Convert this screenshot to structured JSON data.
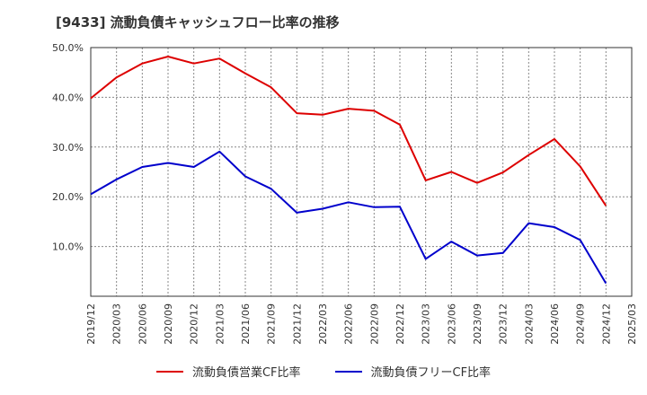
{
  "title": "[9433]  流動負債キャッシュフロー比率の推移",
  "colors": {
    "operating": "#dd0000",
    "free": "#0000cc",
    "grid": "#888888",
    "axis": "#333333"
  },
  "chart_data": {
    "type": "line",
    "title": "[9433]  流動負債キャッシュフロー比率の推移",
    "xlabel": "",
    "ylabel": "",
    "ylim": [
      0,
      50
    ],
    "yticks": [
      "10.0%",
      "20.0%",
      "30.0%",
      "40.0%",
      "50.0%"
    ],
    "ytick_values": [
      10,
      20,
      30,
      40,
      50
    ],
    "grid": true,
    "legend": "bottom",
    "categories": [
      "2019/12",
      "2020/03",
      "2020/06",
      "2020/09",
      "2020/12",
      "2021/03",
      "2021/06",
      "2021/09",
      "2021/12",
      "2022/03",
      "2022/06",
      "2022/09",
      "2022/12",
      "2023/03",
      "2023/06",
      "2023/09",
      "2023/12",
      "2024/03",
      "2024/06",
      "2024/09",
      "2024/12",
      "2025/03"
    ],
    "series": [
      {
        "name": "流動負債営業CF比率",
        "color": "#dd0000",
        "values": [
          39.8,
          44.0,
          46.8,
          48.2,
          46.8,
          47.8,
          44.8,
          42.0,
          36.8,
          36.5,
          37.7,
          37.3,
          34.5,
          23.3,
          25.0,
          22.8,
          24.9,
          28.4,
          31.6,
          26.1,
          18.2,
          null
        ]
      },
      {
        "name": "流動負債フリーCF比率",
        "color": "#0000cc",
        "values": [
          20.5,
          23.5,
          26.0,
          26.8,
          26.0,
          29.1,
          24.1,
          21.6,
          16.8,
          17.6,
          18.9,
          17.9,
          18.0,
          7.5,
          11.0,
          8.2,
          8.7,
          14.7,
          13.9,
          11.3,
          2.6,
          null
        ]
      }
    ]
  }
}
